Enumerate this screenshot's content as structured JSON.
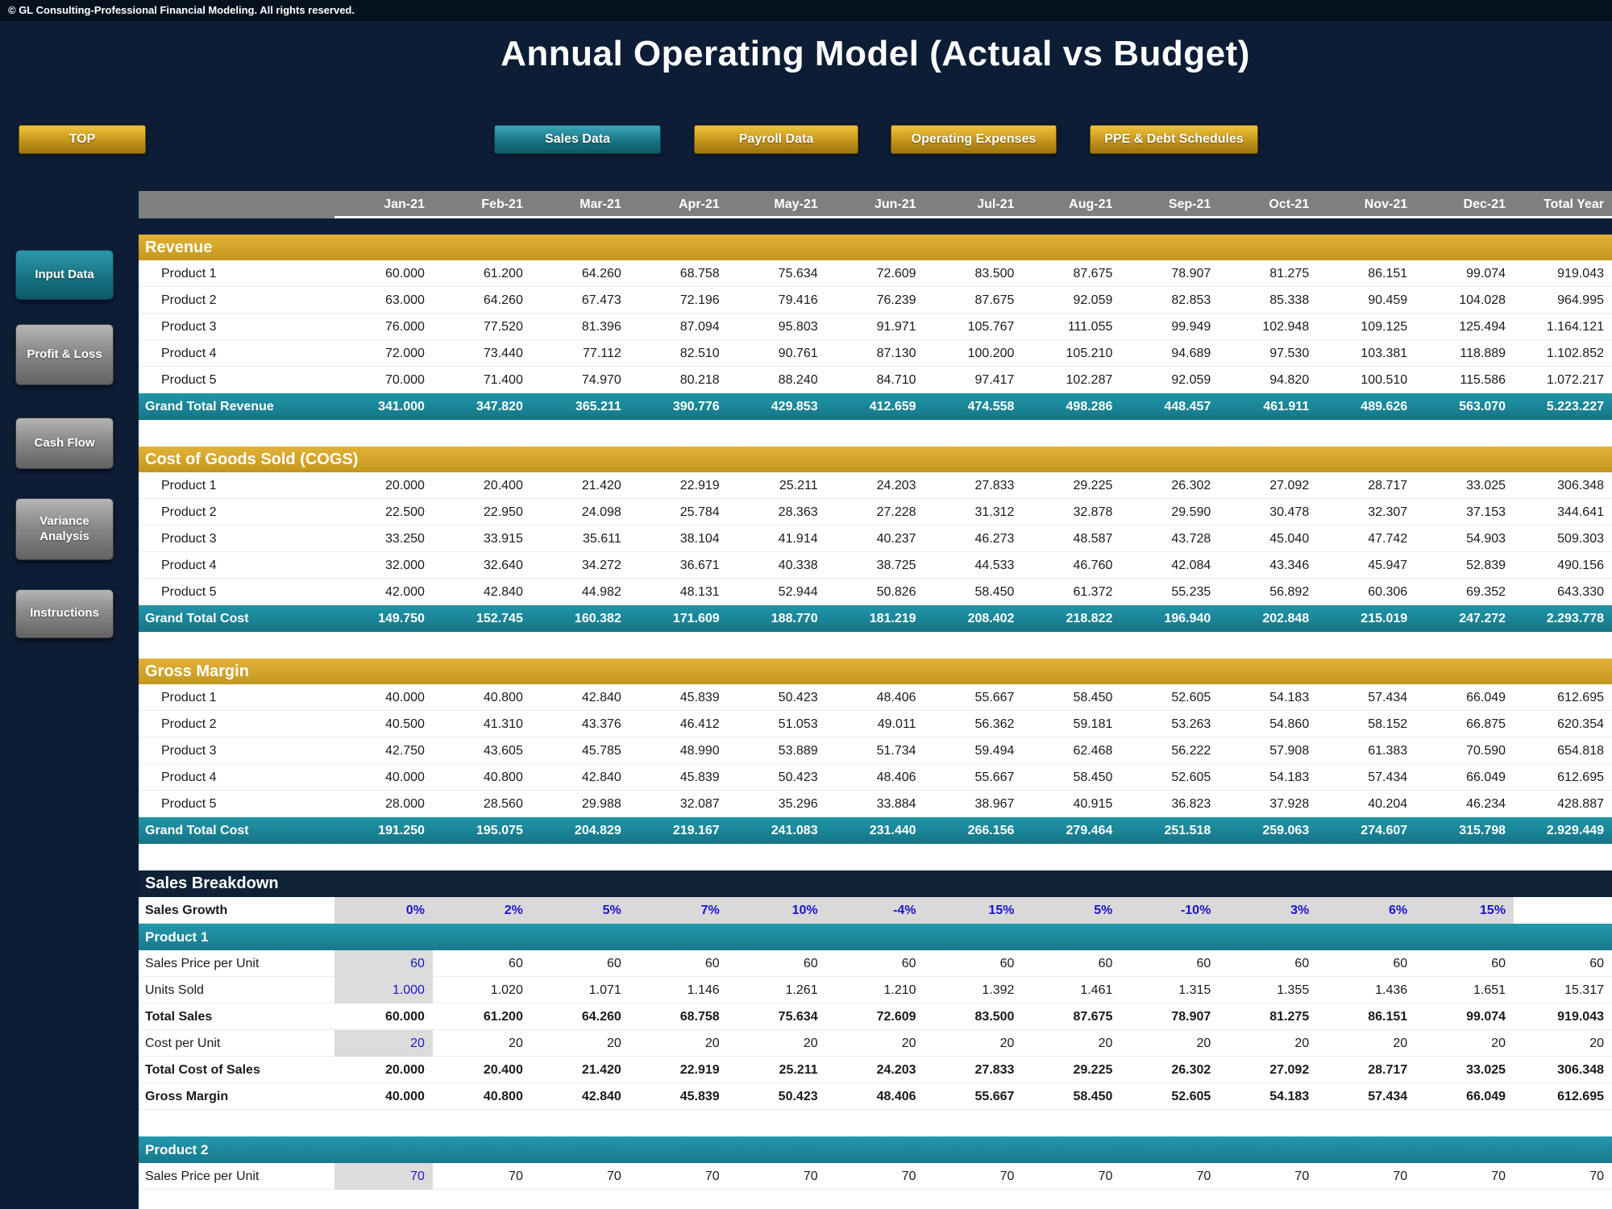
{
  "meta": {
    "copyright": "© GL Consulting-Professional Financial Modeling. All rights reserved."
  },
  "title": "Annual Operating Model (Actual vs Budget)",
  "theme": {
    "navy": "#0d1d36",
    "gold": "#d4a42c",
    "teal": "#1b8a9e",
    "header_gray": "#7f7f7f",
    "input_blue": "#1a16c8",
    "input_gray": "#dcdcdc"
  },
  "nav": {
    "top_label": "TOP",
    "tabs": [
      {
        "label": "Sales Data",
        "active": true
      },
      {
        "label": "Payroll Data",
        "active": false
      },
      {
        "label": "Operating Expenses",
        "active": false
      },
      {
        "label": "PPE & Debt Schedules",
        "active": false
      }
    ]
  },
  "sidebar": {
    "items": [
      {
        "label": "Input Data",
        "active": true
      },
      {
        "label": "Profit & Loss",
        "active": false
      },
      {
        "label": "Cash Flow",
        "active": false
      },
      {
        "label": "Variance Analysis",
        "active": false
      },
      {
        "label": "Instructions",
        "active": false
      }
    ]
  },
  "sheet": {
    "columns": [
      "Jan-21",
      "Feb-21",
      "Mar-21",
      "Apr-21",
      "May-21",
      "Jun-21",
      "Jul-21",
      "Aug-21",
      "Sep-21",
      "Oct-21",
      "Nov-21",
      "Dec-21",
      "Total Year"
    ],
    "blocks": [
      {
        "type": "gap"
      },
      {
        "type": "section",
        "label": "Revenue"
      },
      {
        "type": "plain",
        "label": "Product 1",
        "values": [
          "60.000",
          "61.200",
          "64.260",
          "68.758",
          "75.634",
          "72.609",
          "83.500",
          "87.675",
          "78.907",
          "81.275",
          "86.151",
          "99.074",
          "919.043"
        ]
      },
      {
        "type": "plain",
        "label": "Product 2",
        "values": [
          "63.000",
          "64.260",
          "67.473",
          "72.196",
          "79.416",
          "76.239",
          "87.675",
          "92.059",
          "82.853",
          "85.338",
          "90.459",
          "104.028",
          "964.995"
        ]
      },
      {
        "type": "plain",
        "label": "Product 3",
        "values": [
          "76.000",
          "77.520",
          "81.396",
          "87.094",
          "95.803",
          "91.971",
          "105.767",
          "111.055",
          "99.949",
          "102.948",
          "109.125",
          "125.494",
          "1.164.121"
        ]
      },
      {
        "type": "plain",
        "label": "Product 4",
        "values": [
          "72.000",
          "73.440",
          "77.112",
          "82.510",
          "90.761",
          "87.130",
          "100.200",
          "105.210",
          "94.689",
          "97.530",
          "103.381",
          "118.889",
          "1.102.852"
        ]
      },
      {
        "type": "plain",
        "label": "Product 5",
        "values": [
          "70.000",
          "71.400",
          "74.970",
          "80.218",
          "88.240",
          "84.710",
          "97.417",
          "102.287",
          "92.059",
          "94.820",
          "100.510",
          "115.586",
          "1.072.217"
        ]
      },
      {
        "type": "total",
        "label": "Grand Total Revenue",
        "values": [
          "341.000",
          "347.820",
          "365.211",
          "390.776",
          "429.853",
          "412.659",
          "474.558",
          "498.286",
          "448.457",
          "461.911",
          "489.626",
          "563.070",
          "5.223.227"
        ]
      },
      {
        "type": "spacer"
      },
      {
        "type": "section",
        "label": "Cost of Goods Sold (COGS)"
      },
      {
        "type": "plain",
        "label": "Product 1",
        "values": [
          "20.000",
          "20.400",
          "21.420",
          "22.919",
          "25.211",
          "24.203",
          "27.833",
          "29.225",
          "26.302",
          "27.092",
          "28.717",
          "33.025",
          "306.348"
        ]
      },
      {
        "type": "plain",
        "label": "Product 2",
        "values": [
          "22.500",
          "22.950",
          "24.098",
          "25.784",
          "28.363",
          "27.228",
          "31.312",
          "32.878",
          "29.590",
          "30.478",
          "32.307",
          "37.153",
          "344.641"
        ]
      },
      {
        "type": "plain",
        "label": "Product 3",
        "values": [
          "33.250",
          "33.915",
          "35.611",
          "38.104",
          "41.914",
          "40.237",
          "46.273",
          "48.587",
          "43.728",
          "45.040",
          "47.742",
          "54.903",
          "509.303"
        ]
      },
      {
        "type": "plain",
        "label": "Product 4",
        "values": [
          "32.000",
          "32.640",
          "34.272",
          "36.671",
          "40.338",
          "38.725",
          "44.533",
          "46.760",
          "42.084",
          "43.346",
          "45.947",
          "52.839",
          "490.156"
        ]
      },
      {
        "type": "plain",
        "label": "Product 5",
        "values": [
          "42.000",
          "42.840",
          "44.982",
          "48.131",
          "52.944",
          "50.826",
          "58.450",
          "61.372",
          "55.235",
          "56.892",
          "60.306",
          "69.352",
          "643.330"
        ]
      },
      {
        "type": "total",
        "label": "Grand Total Cost",
        "values": [
          "149.750",
          "152.745",
          "160.382",
          "171.609",
          "188.770",
          "181.219",
          "208.402",
          "218.822",
          "196.940",
          "202.848",
          "215.019",
          "247.272",
          "2.293.778"
        ]
      },
      {
        "type": "spacer"
      },
      {
        "type": "section",
        "label": "Gross Margin"
      },
      {
        "type": "plain",
        "label": "Product 1",
        "values": [
          "40.000",
          "40.800",
          "42.840",
          "45.839",
          "50.423",
          "48.406",
          "55.667",
          "58.450",
          "52.605",
          "54.183",
          "57.434",
          "66.049",
          "612.695"
        ]
      },
      {
        "type": "plain",
        "label": "Product 2",
        "values": [
          "40.500",
          "41.310",
          "43.376",
          "46.412",
          "51.053",
          "49.011",
          "56.362",
          "59.181",
          "53.263",
          "54.860",
          "58.152",
          "66.875",
          "620.354"
        ]
      },
      {
        "type": "plain",
        "label": "Product 3",
        "values": [
          "42.750",
          "43.605",
          "45.785",
          "48.990",
          "53.889",
          "51.734",
          "59.494",
          "62.468",
          "56.222",
          "57.908",
          "61.383",
          "70.590",
          "654.818"
        ]
      },
      {
        "type": "plain",
        "label": "Product 4",
        "values": [
          "40.000",
          "40.800",
          "42.840",
          "45.839",
          "50.423",
          "48.406",
          "55.667",
          "58.450",
          "52.605",
          "54.183",
          "57.434",
          "66.049",
          "612.695"
        ]
      },
      {
        "type": "plain",
        "label": "Product 5",
        "values": [
          "28.000",
          "28.560",
          "29.988",
          "32.087",
          "35.296",
          "33.884",
          "38.967",
          "40.915",
          "36.823",
          "37.928",
          "40.204",
          "46.234",
          "428.887"
        ]
      },
      {
        "type": "total",
        "label": "Grand Total Cost",
        "values": [
          "191.250",
          "195.075",
          "204.829",
          "219.167",
          "241.083",
          "231.440",
          "266.156",
          "279.464",
          "251.518",
          "259.063",
          "274.607",
          "315.798",
          "2.929.449"
        ]
      },
      {
        "type": "spacer"
      },
      {
        "type": "dark",
        "label": "Sales Breakdown"
      },
      {
        "type": "growth",
        "label": "Sales Growth",
        "values": [
          "0%",
          "2%",
          "5%",
          "7%",
          "10%",
          "-4%",
          "15%",
          "5%",
          "-10%",
          "3%",
          "6%",
          "15%",
          ""
        ]
      },
      {
        "type": "product",
        "label": "Product 1"
      },
      {
        "type": "input",
        "label": "Sales Price per Unit",
        "values": [
          "60",
          "60",
          "60",
          "60",
          "60",
          "60",
          "60",
          "60",
          "60",
          "60",
          "60",
          "60",
          "60"
        ]
      },
      {
        "type": "input",
        "label": "Units Sold",
        "values": [
          "1.000",
          "1.020",
          "1.071",
          "1.146",
          "1.261",
          "1.210",
          "1.392",
          "1.461",
          "1.315",
          "1.355",
          "1.436",
          "1.651",
          "15.317"
        ]
      },
      {
        "type": "bold",
        "label": "Total Sales",
        "values": [
          "60.000",
          "61.200",
          "64.260",
          "68.758",
          "75.634",
          "72.609",
          "83.500",
          "87.675",
          "78.907",
          "81.275",
          "86.151",
          "99.074",
          "919.043"
        ]
      },
      {
        "type": "input",
        "label": "Cost per Unit",
        "values": [
          "20",
          "20",
          "20",
          "20",
          "20",
          "20",
          "20",
          "20",
          "20",
          "20",
          "20",
          "20",
          "20"
        ]
      },
      {
        "type": "bold",
        "label": "Total Cost of Sales",
        "values": [
          "20.000",
          "20.400",
          "21.420",
          "22.919",
          "25.211",
          "24.203",
          "27.833",
          "29.225",
          "26.302",
          "27.092",
          "28.717",
          "33.025",
          "306.348"
        ]
      },
      {
        "type": "bold",
        "label": "Gross Margin",
        "values": [
          "40.000",
          "40.800",
          "42.840",
          "45.839",
          "50.423",
          "48.406",
          "55.667",
          "58.450",
          "52.605",
          "54.183",
          "57.434",
          "66.049",
          "612.695"
        ]
      },
      {
        "type": "spacer"
      },
      {
        "type": "product",
        "label": "Product 2"
      },
      {
        "type": "input",
        "label": "Sales Price per Unit",
        "values": [
          "70",
          "70",
          "70",
          "70",
          "70",
          "70",
          "70",
          "70",
          "70",
          "70",
          "70",
          "70",
          "70"
        ]
      },
      {
        "type": "spacer"
      }
    ]
  }
}
